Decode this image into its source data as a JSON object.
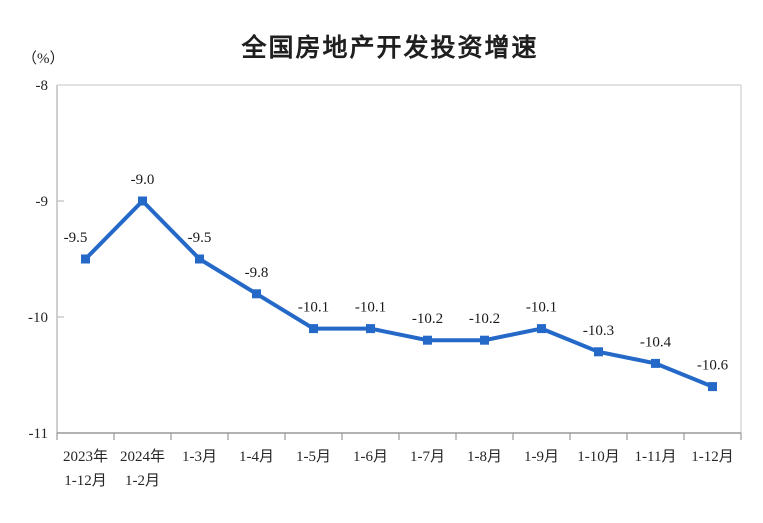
{
  "page": {
    "background": "#ffffff"
  },
  "header": {
    "title": "全国房地产开发投资增速",
    "unit_label": "（%）"
  },
  "chart_data": {
    "type": "line",
    "title": "全国房地产开发投资增速",
    "ylabel": "（%）",
    "xlabel": "",
    "categories": [
      "2023年\n1-12月",
      "2024年\n1-2月",
      "1-3月",
      "1-4月",
      "1-5月",
      "1-6月",
      "1-7月",
      "1-8月",
      "1-9月",
      "1-10月",
      "1-11月",
      "1-12月"
    ],
    "values": [
      -9.5,
      -9.0,
      -9.5,
      -9.8,
      -10.1,
      -10.1,
      -10.2,
      -10.2,
      -10.1,
      -10.3,
      -10.4,
      -10.6
    ],
    "data_labels": [
      "-9.5",
      "-9.0",
      "-9.5",
      "-9.8",
      "-10.1",
      "-10.1",
      "-10.2",
      "-10.2",
      "-10.1",
      "-10.3",
      "-10.4",
      "-10.6"
    ],
    "ylim": [
      -11,
      -8
    ],
    "yticks": [
      -8,
      -9,
      -10,
      -11
    ],
    "grid": false,
    "legend": "none",
    "marker": "square",
    "colors": {
      "line": "#2569C8",
      "marker": "#2569C8",
      "label_text": "#1a1a1a",
      "axis_top_right": "#d9d9d9",
      "axis_left": "#bfbfbf",
      "axis_bottom": "#999999"
    }
  }
}
